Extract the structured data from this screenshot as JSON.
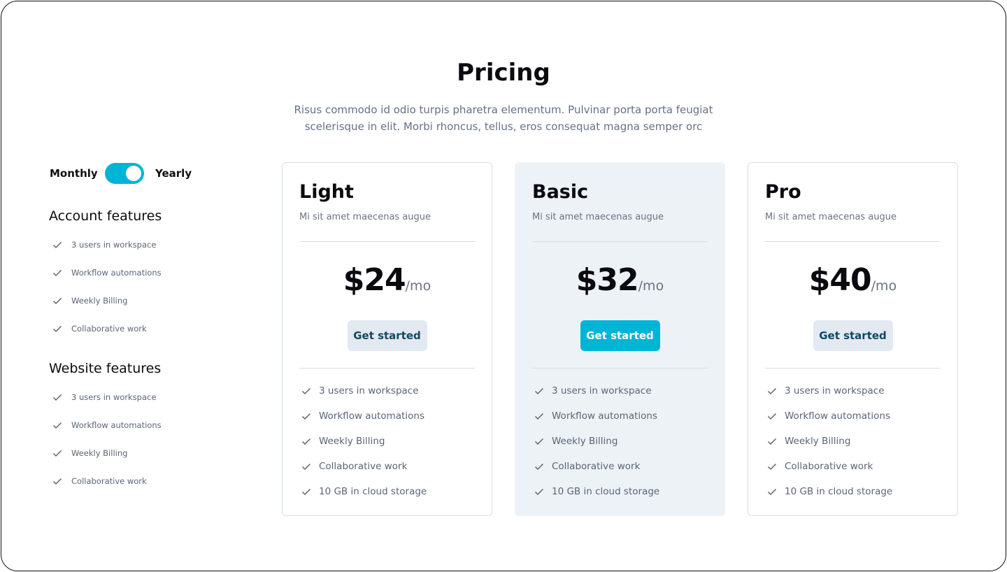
{
  "header": {
    "title": "Pricing",
    "subtitle_line1": "Risus commodo id odio turpis pharetra elementum. Pulvinar porta porta feugiat",
    "subtitle_line2": "scelerisque in elit. Morbi rhoncus, tellus, eros consequat magna semper orc"
  },
  "billing": {
    "monthly": "Monthly",
    "yearly": "Yearly",
    "selected": "Yearly",
    "accent": "#00b4d8"
  },
  "sidebar": {
    "sections": [
      {
        "title": "Account features",
        "items": [
          "3 users in workspace",
          "Workflow automations",
          "Weekly Billing",
          "Collaborative work"
        ]
      },
      {
        "title": "Website features",
        "items": [
          "3 users in workspace",
          "Workflow automations",
          "Weekly Billing",
          "Collaborative work"
        ]
      }
    ]
  },
  "plans": [
    {
      "name": "Light",
      "description": "Mi sit amet maecenas augue",
      "price": "$24",
      "period": "/mo",
      "cta": "Get started",
      "highlighted": false,
      "features": [
        "3 users in workspace",
        "Workflow automations",
        "Weekly Billing",
        "Collaborative work",
        "10 GB in cloud storage"
      ]
    },
    {
      "name": "Basic",
      "description": "Mi sit amet maecenas augue",
      "price": "$32",
      "period": "/mo",
      "cta": "Get started",
      "highlighted": true,
      "features": [
        "3 users in workspace",
        "Workflow automations",
        "Weekly Billing",
        "Collaborative work",
        "10 GB in cloud storage"
      ]
    },
    {
      "name": "Pro",
      "description": "Mi sit amet maecenas augue",
      "price": "$40",
      "period": "/mo",
      "cta": "Get started",
      "highlighted": false,
      "features": [
        "3 users in workspace",
        "Workflow automations",
        "Weekly Billing",
        "Collaborative work",
        "10 GB in cloud storage"
      ]
    }
  ]
}
